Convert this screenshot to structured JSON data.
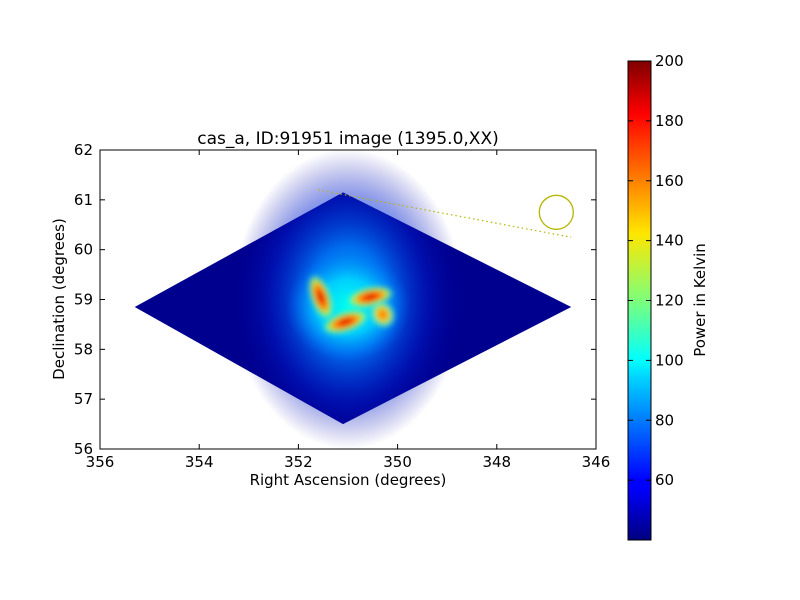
{
  "chart_data": {
    "type": "heatmap",
    "title": "cas_a, ID:91951 image (1395.0,XX)",
    "xlabel": "Right Ascension (degrees)",
    "ylabel": "Declination (degrees)",
    "xlim": [
      356,
      346
    ],
    "ylim": [
      56,
      62
    ],
    "x_ticks": [
      "356",
      "354",
      "352",
      "350",
      "348",
      "346"
    ],
    "y_ticks": [
      "56",
      "57",
      "58",
      "59",
      "60",
      "61",
      "62"
    ],
    "colorbar": {
      "label": "Power in Kelvin",
      "range": [
        40,
        200
      ],
      "ticks": [
        "60",
        "80",
        "100",
        "120",
        "140",
        "160",
        "180",
        "200"
      ],
      "colormap": "jet"
    },
    "image_footprint": {
      "corners_ra_dec": [
        [
          351.1,
          61.15
        ],
        [
          346.5,
          58.85
        ],
        [
          351.1,
          56.5
        ],
        [
          355.3,
          58.85
        ]
      ],
      "background_value": 45
    },
    "emission_peaks": [
      {
        "ra": 350.55,
        "dec": 59.05,
        "value": 195
      },
      {
        "ra": 351.05,
        "dec": 58.55,
        "value": 190
      },
      {
        "ra": 351.55,
        "dec": 59.05,
        "value": 180
      },
      {
        "ra": 350.3,
        "dec": 58.7,
        "value": 150
      }
    ],
    "beam_circle": {
      "ra": 346.8,
      "dec": 60.75,
      "color": "#b5b500"
    },
    "beam_line": {
      "from": [
        351.6,
        61.2
      ],
      "to": [
        346.5,
        60.25
      ],
      "style": "dotted",
      "color": "#b5b500"
    }
  }
}
